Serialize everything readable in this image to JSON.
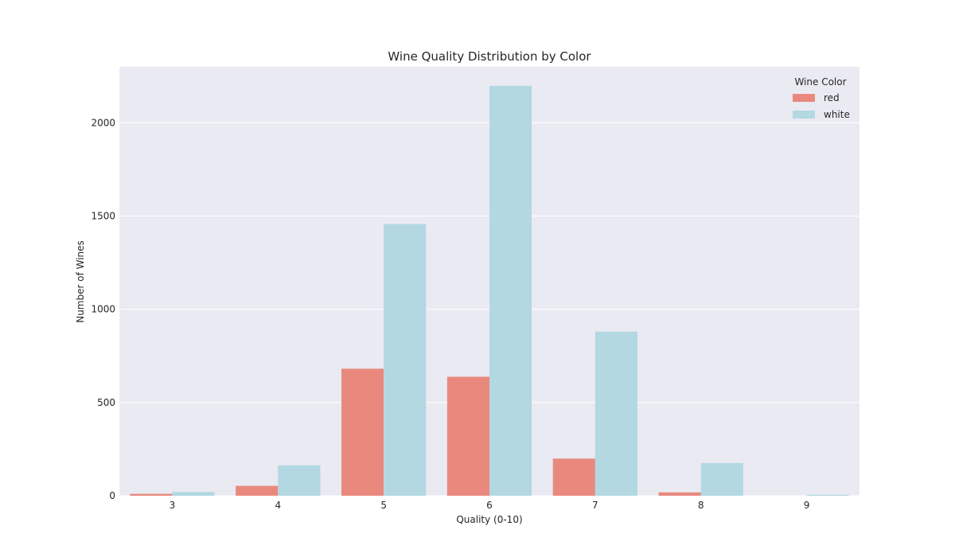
{
  "chart_data": {
    "type": "bar",
    "title": "Wine Quality Distribution by Color",
    "xlabel": "Quality (0-10)",
    "ylabel": "Number of Wines",
    "categories": [
      "3",
      "4",
      "5",
      "6",
      "7",
      "8",
      "9"
    ],
    "series": [
      {
        "name": "red",
        "color": "#e9897e",
        "values": [
          10,
          53,
          681,
          638,
          199,
          18,
          0
        ]
      },
      {
        "name": "white",
        "color": "#b3d8e2",
        "values": [
          20,
          163,
          1457,
          2198,
          880,
          175,
          5
        ]
      }
    ],
    "ylim": [
      0,
      2300
    ],
    "yticks": [
      0,
      500,
      1000,
      1500,
      2000
    ],
    "grid": true,
    "legend": {
      "title": "Wine Color",
      "placement": "top-right"
    }
  }
}
